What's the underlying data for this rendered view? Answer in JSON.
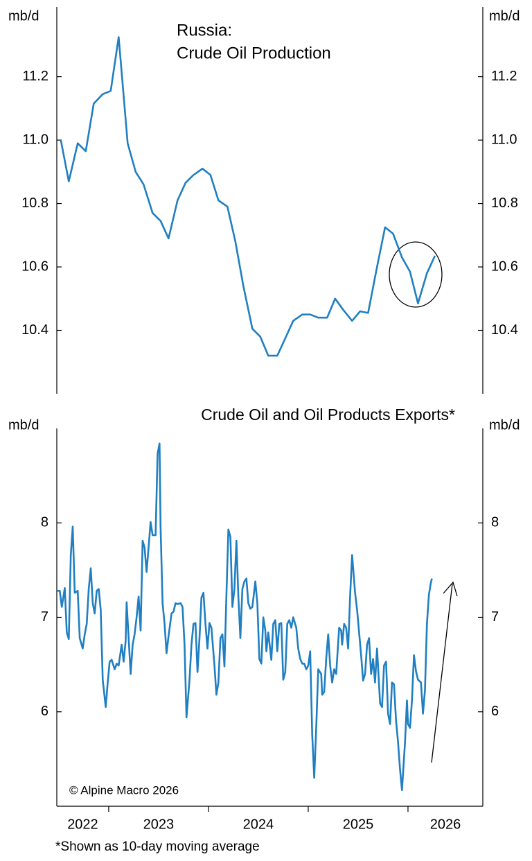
{
  "chart_data": [
    {
      "type": "line",
      "title": "Russia:",
      "subtitle": "Crude Oil Production",
      "ylabel": "mb/d",
      "y2label": "mb/d",
      "color": "#1f7fc1",
      "xlim": [
        2022.48,
        2026.75
      ],
      "ylim": [
        10.2,
        11.42
      ],
      "yticks": [
        10.4,
        10.6,
        10.8,
        {
          "value": 11,
          "label": "11.0"
        },
        11.2
      ],
      "y2lim": [
        10.2,
        11.42
      ],
      "y2ticks": [
        10.4,
        10.6,
        10.8,
        {
          "value": 11,
          "label": "11.0"
        },
        11.2
      ],
      "x": [
        2022.52,
        2022.6,
        2022.69,
        2022.77,
        2022.85,
        2022.94,
        2023.02,
        2023.1,
        2023.19,
        2023.27,
        2023.35,
        2023.44,
        2023.52,
        2023.6,
        2023.69,
        2023.77,
        2023.85,
        2023.94,
        2024.02,
        2024.1,
        2024.19,
        2024.27,
        2024.35,
        2024.44,
        2024.52,
        2024.6,
        2024.69,
        2024.77,
        2024.85,
        2024.94,
        2025.02,
        2025.1,
        2025.19,
        2025.27,
        2025.35,
        2025.44,
        2025.52,
        2025.6,
        2025.69,
        2025.77,
        2025.85,
        2025.94,
        2026.02,
        2026.1,
        2026.19,
        2026.27
      ],
      "values": [
        11.0,
        10.87,
        10.99,
        10.965,
        11.115,
        11.145,
        11.155,
        11.325,
        10.99,
        10.9,
        10.86,
        10.77,
        10.745,
        10.69,
        10.81,
        10.865,
        10.89,
        10.91,
        10.89,
        10.81,
        10.79,
        10.68,
        10.54,
        10.405,
        10.38,
        10.32,
        10.32,
        10.375,
        10.43,
        10.45,
        10.45,
        10.44,
        10.44,
        10.5,
        10.465,
        10.43,
        10.46,
        10.455,
        10.6,
        10.725,
        10.705,
        10.63,
        10.585,
        10.485,
        10.58,
        10.635
      ]
    },
    {
      "type": "line",
      "title": "Crude Oil and Oil Products Exports*",
      "ylabel": "mb/d",
      "y2label": "mb/d",
      "color": "#1f7fc1",
      "annotation": "© Alpine Macro 2026",
      "footnote": "*Shown as 10-day moving average",
      "xlim": [
        2022.48,
        2026.75
      ],
      "xticks": [
        2022,
        2023,
        2024,
        2025,
        2026
      ],
      "ylim": [
        5,
        9
      ],
      "yticks": [
        6,
        7,
        8
      ],
      "y2lim": [
        5,
        9
      ],
      "y2ticks": [
        6,
        7,
        8
      ],
      "x": [
        2022.48,
        2022.51,
        2022.53,
        2022.56,
        2022.58,
        2022.6,
        2022.62,
        2022.64,
        2022.66,
        2022.69,
        2022.71,
        2022.74,
        2022.76,
        2022.78,
        2022.8,
        2022.82,
        2022.84,
        2022.86,
        2022.88,
        2022.9,
        2022.92,
        2022.94,
        2022.97,
        2022.99,
        2023.01,
        2023.03,
        2023.06,
        2023.08,
        2023.1,
        2023.13,
        2023.15,
        2023.17,
        2023.18,
        2023.2,
        2023.22,
        2023.24,
        2023.26,
        2023.28,
        2023.3,
        2023.32,
        2023.34,
        2023.36,
        2023.38,
        2023.4,
        2023.42,
        2023.44,
        2023.47,
        2023.49,
        2023.51,
        2023.52,
        2023.54,
        2023.56,
        2023.58,
        2023.6,
        2023.63,
        2023.65,
        2023.67,
        2023.69,
        2023.72,
        2023.74,
        2023.76,
        2023.78,
        2023.81,
        2023.83,
        2023.85,
        2023.87,
        2023.89,
        2023.91,
        2023.93,
        2023.95,
        2023.97,
        2023.99,
        2024.01,
        2024.03,
        2024.06,
        2024.08,
        2024.1,
        2024.12,
        2024.14,
        2024.16,
        2024.18,
        2024.2,
        2024.22,
        2024.24,
        2024.26,
        2024.28,
        2024.3,
        2024.32,
        2024.34,
        2024.36,
        2024.38,
        2024.4,
        2024.42,
        2024.44,
        2024.47,
        2024.49,
        2024.51,
        2024.53,
        2024.55,
        2024.57,
        2024.58,
        2024.6,
        2024.63,
        2024.65,
        2024.67,
        2024.69,
        2024.71,
        2024.73,
        2024.75,
        2024.77,
        2024.79,
        2024.81,
        2024.83,
        2024.85,
        2024.88,
        2024.9,
        2024.92,
        2024.94,
        2024.96,
        2024.98,
        2025.0,
        2025.02,
        2025.04,
        2025.06,
        2025.08,
        2025.1,
        2025.13,
        2025.14,
        2025.16,
        2025.18,
        2025.2,
        2025.22,
        2025.24,
        2025.26,
        2025.28,
        2025.31,
        2025.33,
        2025.34,
        2025.36,
        2025.38,
        2025.4,
        2025.42,
        2025.44,
        2025.47,
        2025.49,
        2025.51,
        2025.53,
        2025.55,
        2025.57,
        2025.59,
        2025.61,
        2025.63,
        2025.65,
        2025.67,
        2025.69,
        2025.72,
        2025.74,
        2025.76,
        2025.78,
        2025.8,
        2025.82,
        2025.84,
        2025.86,
        2025.88,
        2025.9,
        2025.92,
        2025.94,
        2025.97,
        2025.99,
        2026.0,
        2026.02,
        2026.04,
        2026.06,
        2026.08,
        2026.1,
        2026.13,
        2026.15,
        2026.17,
        2026.19,
        2026.21,
        2026.23,
        2026.24
      ],
      "values": [
        7.28,
        7.28,
        7.11,
        7.31,
        6.84,
        6.77,
        7.66,
        7.96,
        7.26,
        7.28,
        6.78,
        6.67,
        6.82,
        6.93,
        7.3,
        7.52,
        7.15,
        7.04,
        7.28,
        7.3,
        7.08,
        6.34,
        6.05,
        6.31,
        6.53,
        6.55,
        6.45,
        6.51,
        6.49,
        6.71,
        6.53,
        6.75,
        7.16,
        6.78,
        6.4,
        6.71,
        6.82,
        7.0,
        7.22,
        6.86,
        7.81,
        7.74,
        7.48,
        7.74,
        8.01,
        7.87,
        7.87,
        8.73,
        8.84,
        7.96,
        7.15,
        6.93,
        6.62,
        6.8,
        7.04,
        7.06,
        7.15,
        7.14,
        7.15,
        7.11,
        6.71,
        5.94,
        6.34,
        6.71,
        6.93,
        6.94,
        6.42,
        6.78,
        7.21,
        7.26,
        6.93,
        6.67,
        6.94,
        6.89,
        6.49,
        6.18,
        6.31,
        6.78,
        6.82,
        6.48,
        7.22,
        7.93,
        7.85,
        7.11,
        7.3,
        7.81,
        7.22,
        6.78,
        7.3,
        7.38,
        7.41,
        7.15,
        7.09,
        7.11,
        7.38,
        7.15,
        6.56,
        6.51,
        7.0,
        6.86,
        6.64,
        6.84,
        6.55,
        6.93,
        6.97,
        6.64,
        6.93,
        6.94,
        6.34,
        6.42,
        6.93,
        6.97,
        6.89,
        7.0,
        6.89,
        6.67,
        6.56,
        6.51,
        6.51,
        6.45,
        6.49,
        6.64,
        5.76,
        5.3,
        5.83,
        6.45,
        6.4,
        6.18,
        6.21,
        6.56,
        6.82,
        6.49,
        6.31,
        6.45,
        6.4,
        6.89,
        6.86,
        6.71,
        6.93,
        6.89,
        6.67,
        7.22,
        7.66,
        7.26,
        7.08,
        6.84,
        6.6,
        6.33,
        6.4,
        6.71,
        6.78,
        6.4,
        6.56,
        6.31,
        6.67,
        6.09,
        6.05,
        6.49,
        6.53,
        5.98,
        5.87,
        6.31,
        6.29,
        5.91,
        5.68,
        5.39,
        5.17,
        5.68,
        6.12,
        5.87,
        5.83,
        6.12,
        6.6,
        6.43,
        6.34,
        6.31,
        5.98,
        6.23,
        6.93,
        7.24,
        7.37,
        7.41
      ]
    }
  ]
}
